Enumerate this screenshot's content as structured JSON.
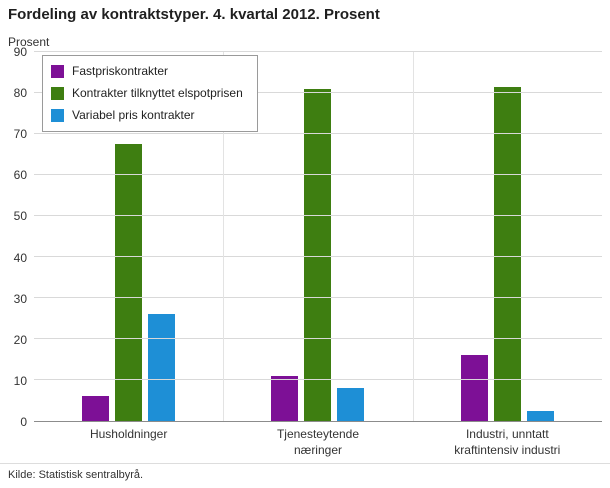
{
  "title": "Fordeling av kontraktstyper. 4. kvartal 2012. Prosent",
  "y_axis_label": "Prosent",
  "footer": "Kilde: Statistisk sentralbyrå.",
  "colors": {
    "fastpris": "#7d1096",
    "elspot": "#3e7e11",
    "variabel": "#1e8fd6",
    "gridline": "#d9d9d9",
    "axis": "#8c8c8c"
  },
  "legend": [
    {
      "label": "Fastpriskontrakter",
      "color": "#7d1096"
    },
    {
      "label": "Kontrakter tilknyttet elspotprisen",
      "color": "#3e7e11"
    },
    {
      "label": "Variabel pris kontrakter",
      "color": "#1e8fd6"
    }
  ],
  "chart_data": {
    "type": "bar",
    "title": "Fordeling av kontraktstyper. 4. kvartal 2012. Prosent",
    "xlabel": "",
    "ylabel": "Prosent",
    "ylim": [
      0,
      90
    ],
    "ytick_step": 10,
    "grid": true,
    "legend_position": "top-left",
    "categories": [
      "Husholdninger",
      "Tjenesteytende næringer",
      "Industri, unntatt kraftintensiv industri"
    ],
    "category_lines": [
      [
        "Husholdninger"
      ],
      [
        "Tjenesteytende",
        "næringer"
      ],
      [
        "Industri, unntatt",
        "kraftintensiv industri"
      ]
    ],
    "series": [
      {
        "name": "Fastpriskontrakter",
        "color": "#7d1096",
        "values": [
          6,
          11,
          16
        ]
      },
      {
        "name": "Kontrakter tilknyttet elspotprisen",
        "color": "#3e7e11",
        "values": [
          67.5,
          81,
          81.5
        ]
      },
      {
        "name": "Variabel pris kontrakter",
        "color": "#1e8fd6",
        "values": [
          26,
          8,
          2.5
        ]
      }
    ]
  }
}
